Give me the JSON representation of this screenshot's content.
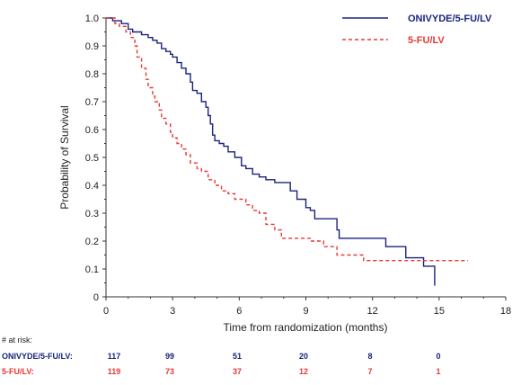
{
  "chart_data": {
    "type": "line",
    "title": "",
    "xlabel": "Time from randomization (months)",
    "ylabel": "Probability of Survival",
    "xlim": [
      0,
      18
    ],
    "ylim": [
      0,
      1.0
    ],
    "x_ticks": [
      "0",
      "3",
      "6",
      "9",
      "12",
      "15",
      "18"
    ],
    "y_ticks": [
      "0",
      "0.1",
      "0.2",
      "0.3",
      "0.4",
      "0.5",
      "0.6",
      "0.7",
      "0.8",
      "0.9",
      "1.0"
    ],
    "legend_position": "top-right",
    "series": [
      {
        "name": "ONIVYDE/5-FU/LV",
        "color": "#1a237e",
        "line_style": "solid",
        "x": [
          0,
          0.3,
          0.7,
          1.0,
          1.2,
          1.6,
          1.9,
          2.1,
          2.3,
          2.5,
          2.7,
          2.9,
          3.0,
          3.2,
          3.4,
          3.6,
          3.8,
          3.9,
          4.1,
          4.3,
          4.5,
          4.6,
          4.7,
          4.8,
          4.9,
          5.1,
          5.3,
          5.5,
          5.8,
          6.1,
          6.3,
          6.6,
          6.9,
          7.2,
          7.6,
          7.9,
          8.3,
          8.6,
          9.0,
          9.2,
          9.4,
          10.1,
          10.4,
          10.5,
          10.9,
          12.3,
          12.6,
          13.2,
          13.5,
          13.9,
          14.3,
          14.6,
          14.8
        ],
        "y": [
          1.0,
          0.99,
          0.98,
          0.96,
          0.95,
          0.94,
          0.93,
          0.92,
          0.91,
          0.89,
          0.88,
          0.87,
          0.86,
          0.84,
          0.82,
          0.8,
          0.77,
          0.74,
          0.73,
          0.7,
          0.68,
          0.65,
          0.62,
          0.58,
          0.56,
          0.55,
          0.54,
          0.52,
          0.5,
          0.47,
          0.46,
          0.44,
          0.43,
          0.42,
          0.41,
          0.41,
          0.38,
          0.35,
          0.32,
          0.31,
          0.28,
          0.28,
          0.24,
          0.21,
          0.21,
          0.21,
          0.18,
          0.18,
          0.14,
          0.14,
          0.11,
          0.11,
          0.04
        ]
      },
      {
        "name": "5-FU/LV",
        "color": "#e53935",
        "line_style": "dashed",
        "x": [
          0,
          0.4,
          0.6,
          0.9,
          1.1,
          1.3,
          1.4,
          1.6,
          1.8,
          1.9,
          2.1,
          2.2,
          2.4,
          2.5,
          2.7,
          2.9,
          3.0,
          3.2,
          3.4,
          3.6,
          3.8,
          4.1,
          4.3,
          4.6,
          4.9,
          5.2,
          5.5,
          5.8,
          6.3,
          6.6,
          6.9,
          7.2,
          7.6,
          7.9,
          8.6,
          9.2,
          9.8,
          10.4,
          11.2,
          11.6,
          12.0,
          13.2,
          14.0,
          14.8,
          16.3
        ],
        "y": [
          1.0,
          0.98,
          0.97,
          0.95,
          0.93,
          0.9,
          0.86,
          0.82,
          0.78,
          0.75,
          0.72,
          0.7,
          0.67,
          0.64,
          0.62,
          0.59,
          0.57,
          0.55,
          0.53,
          0.51,
          0.48,
          0.46,
          0.45,
          0.42,
          0.4,
          0.38,
          0.37,
          0.35,
          0.33,
          0.31,
          0.3,
          0.26,
          0.24,
          0.21,
          0.21,
          0.2,
          0.18,
          0.15,
          0.15,
          0.13,
          0.13,
          0.13,
          0.13,
          0.13,
          0.13
        ]
      }
    ]
  },
  "risk_table": {
    "header": "# at risk:",
    "rows": [
      {
        "label": "ONIVYDE/5-FU/LV:",
        "color": "#1a237e",
        "values": [
          "117",
          "99",
          "51",
          "20",
          "8",
          "0"
        ]
      },
      {
        "label": "5-FU/LV:",
        "color": "#e53935",
        "values": [
          "119",
          "73",
          "37",
          "12",
          "7",
          "1"
        ]
      }
    ]
  }
}
